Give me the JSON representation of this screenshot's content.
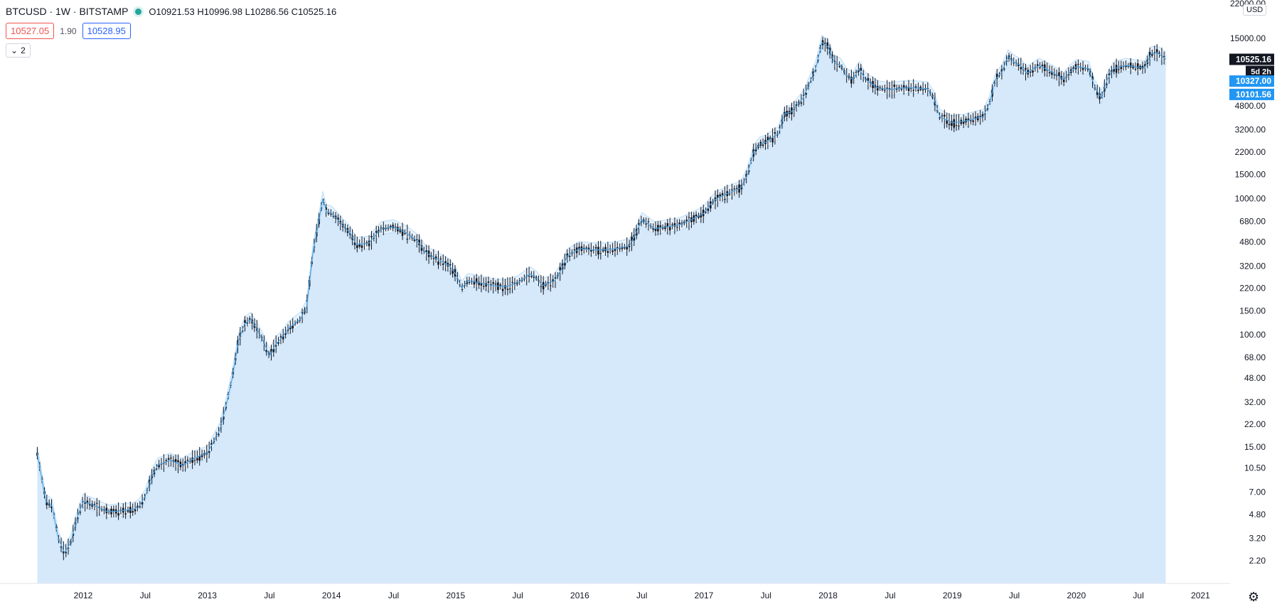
{
  "header": {
    "symbol": "BTCUSD · 1W · BITSTAMP",
    "ohlc": "O10921.53  H10996.98  L10286.56  C10525.16",
    "sell_price": "10527.05",
    "spread": "1.90",
    "buy_price": "10528.95",
    "indicators_count": "2"
  },
  "price_axis": {
    "currency": "USD",
    "top_label": "22000.00",
    "ticks": [
      15000,
      4800,
      3200,
      2200,
      1500,
      1000,
      680,
      480,
      320,
      220,
      150,
      100,
      68,
      48,
      32,
      22,
      15,
      10.5,
      7,
      4.8,
      3.2,
      2.2
    ],
    "tick_labels": [
      "15000.00",
      "4800.00",
      "3200.00",
      "2200.00",
      "1500.00",
      "1000.00",
      "680.00",
      "480.00",
      "320.00",
      "220.00",
      "150.00",
      "100.00",
      "68.00",
      "48.00",
      "32.00",
      "22.00",
      "15.00",
      "10.50",
      "7.00",
      "4.80",
      "3.20",
      "2.20"
    ],
    "last_price": "10525.16",
    "countdown": "5d 2h",
    "band_upper": "10327.00",
    "band_lower": "10101.56"
  },
  "time_axis": {
    "labels": [
      "2012",
      "Jul",
      "2013",
      "Jul",
      "2014",
      "Jul",
      "2015",
      "Jul",
      "2016",
      "Jul",
      "2017",
      "Jul",
      "2018",
      "Jul",
      "2019",
      "Jul",
      "2020",
      "Jul",
      "2021"
    ],
    "years": [
      2012.0,
      2012.5,
      2013.0,
      2013.5,
      2014.0,
      2014.5,
      2015.0,
      2015.5,
      2016.0,
      2016.5,
      2017.0,
      2017.5,
      2018.0,
      2018.5,
      2019.0,
      2019.5,
      2020.0,
      2020.5,
      2021.0
    ]
  },
  "colors": {
    "area_fill": "#d6e9fb",
    "band_fill": "#e6f2fd",
    "band_line": "#bcdcf6",
    "line": "#4ba3e3",
    "candle": "#131722",
    "last_price_bg": "#131722",
    "band_label_bg": "#2196f3"
  },
  "chart_data": {
    "type": "line",
    "scale": "log",
    "x_range": [
      2011.6,
      2021.2
    ],
    "ylim": [
      1.8,
      22000
    ],
    "series": [
      {
        "name": "BTCUSD",
        "x": [
          2011.63,
          2011.66,
          2011.7,
          2011.75,
          2011.8,
          2011.85,
          2011.9,
          2011.95,
          2012.0,
          2012.1,
          2012.2,
          2012.3,
          2012.4,
          2012.45,
          2012.5,
          2012.55,
          2012.6,
          2012.7,
          2012.8,
          2012.9,
          2013.0,
          2013.1,
          2013.15,
          2013.2,
          2013.25,
          2013.3,
          2013.35,
          2013.4,
          2013.45,
          2013.5,
          2013.55,
          2013.6,
          2013.65,
          2013.7,
          2013.75,
          2013.8,
          2013.85,
          2013.9,
          2013.93,
          2013.96,
          2014.0,
          2014.05,
          2014.1,
          2014.15,
          2014.2,
          2014.3,
          2014.4,
          2014.5,
          2014.6,
          2014.7,
          2014.75,
          2014.8,
          2014.85,
          2014.9,
          2014.95,
          2015.0,
          2015.05,
          2015.1,
          2015.2,
          2015.3,
          2015.4,
          2015.5,
          2015.6,
          2015.65,
          2015.7,
          2015.8,
          2015.85,
          2015.9,
          2016.0,
          2016.1,
          2016.2,
          2016.3,
          2016.4,
          2016.45,
          2016.5,
          2016.55,
          2016.6,
          2016.7,
          2016.8,
          2016.9,
          2017.0,
          2017.05,
          2017.1,
          2017.2,
          2017.3,
          2017.35,
          2017.4,
          2017.45,
          2017.5,
          2017.55,
          2017.6,
          2017.65,
          2017.7,
          2017.75,
          2017.8,
          2017.85,
          2017.9,
          2017.95,
          2018.0,
          2018.05,
          2018.1,
          2018.15,
          2018.2,
          2018.25,
          2018.3,
          2018.4,
          2018.5,
          2018.6,
          2018.7,
          2018.8,
          2018.85,
          2018.9,
          2018.95,
          2019.0,
          2019.1,
          2019.2,
          2019.25,
          2019.3,
          2019.35,
          2019.4,
          2019.45,
          2019.5,
          2019.55,
          2019.6,
          2019.7,
          2019.8,
          2019.9,
          2019.95,
          2020.0,
          2020.1,
          2020.15,
          2020.2,
          2020.25,
          2020.3,
          2020.4,
          2020.5,
          2020.55,
          2020.6,
          2020.65,
          2020.7,
          2020.72
        ],
        "y": [
          13.5,
          9.5,
          6.0,
          5.5,
          3.2,
          2.5,
          3.0,
          4.5,
          6.0,
          5.5,
          5.0,
          5.1,
          5.2,
          5.5,
          6.5,
          9,
          11,
          12,
          11,
          12.5,
          13.5,
          20,
          30,
          48,
          90,
          120,
          130,
          110,
          90,
          70,
          85,
          95,
          110,
          120,
          130,
          160,
          400,
          700,
          1000,
          800,
          780,
          700,
          620,
          560,
          460,
          470,
          600,
          620,
          560,
          480,
          410,
          380,
          360,
          340,
          320,
          280,
          220,
          250,
          240,
          230,
          225,
          240,
          280,
          260,
          230,
          250,
          300,
          380,
          430,
          420,
          420,
          430,
          450,
          550,
          700,
          650,
          600,
          620,
          640,
          700,
          780,
          900,
          1000,
          1100,
          1200,
          1500,
          2200,
          2500,
          2600,
          2800,
          3000,
          4200,
          4300,
          4800,
          5500,
          7000,
          9000,
          14000,
          13000,
          10000,
          9500,
          8000,
          7500,
          9000,
          7500,
          6500,
          6300,
          6500,
          6500,
          6400,
          5500,
          4000,
          3800,
          3600,
          3700,
          3900,
          4000,
          5000,
          7500,
          8500,
          11000,
          10000,
          9500,
          8300,
          9500,
          8500,
          7500,
          8500,
          9300,
          9000,
          6500,
          5500,
          7500,
          9000,
          9500,
          9200,
          9100,
          11500,
          11800,
          10900,
          10525
        ]
      }
    ]
  }
}
